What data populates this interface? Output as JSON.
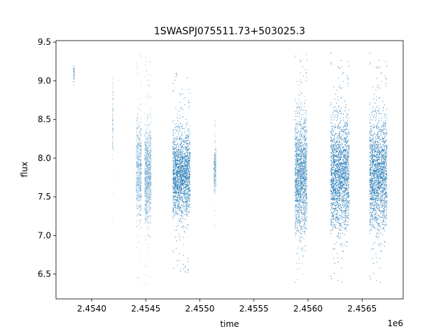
{
  "chart_data": {
    "type": "scatter",
    "title": "1SWASPJ075511.73+503025.3",
    "xlabel": "time",
    "ylabel": "flux",
    "x_offset_label": "1e6",
    "xlim": [
      2.45367,
      2.45688
    ],
    "ylim": [
      6.18,
      9.52
    ],
    "x_ticks": [
      2.454,
      2.4545,
      2.455,
      2.4555,
      2.456,
      2.4565
    ],
    "x_tick_labels": [
      "2.4540",
      "2.4545",
      "2.4550",
      "2.4555",
      "2.4560",
      "2.4565"
    ],
    "y_ticks": [
      6.5,
      7.0,
      7.5,
      8.0,
      8.5,
      9.0,
      9.5
    ],
    "y_tick_labels": [
      "6.5",
      "7.0",
      "7.5",
      "8.0",
      "8.5",
      "9.0",
      "9.5"
    ],
    "grid": false,
    "point_color": "#1f77b4",
    "clusters": [
      {
        "x_start": 2.45383,
        "x_end": 2.45384,
        "y_center": 9.1,
        "y_spread": 0.1,
        "density": 0.4
      },
      {
        "x_start": 2.45419,
        "x_end": 2.4542,
        "y_center": 8.5,
        "y_spread": 0.6,
        "density": 0.6
      },
      {
        "x_start": 2.45441,
        "x_end": 2.45446,
        "y_center": 7.85,
        "y_spread": 0.7,
        "density": 1.2
      },
      {
        "x_start": 2.45449,
        "x_end": 2.45455,
        "y_center": 7.8,
        "y_spread": 0.7,
        "density": 1.6
      },
      {
        "x_start": 2.45475,
        "x_end": 2.45491,
        "y_center": 7.8,
        "y_spread": 0.6,
        "density": 3.2
      },
      {
        "x_start": 2.45513,
        "x_end": 2.45515,
        "y_center": 7.85,
        "y_spread": 0.35,
        "density": 1.0
      },
      {
        "x_start": 2.45588,
        "x_end": 2.45599,
        "y_center": 7.8,
        "y_spread": 0.85,
        "density": 3.0
      },
      {
        "x_start": 2.45621,
        "x_end": 2.45638,
        "y_center": 7.8,
        "y_spread": 0.8,
        "density": 3.6
      },
      {
        "x_start": 2.45657,
        "x_end": 2.45673,
        "y_center": 7.8,
        "y_spread": 0.8,
        "density": 3.4
      }
    ]
  }
}
